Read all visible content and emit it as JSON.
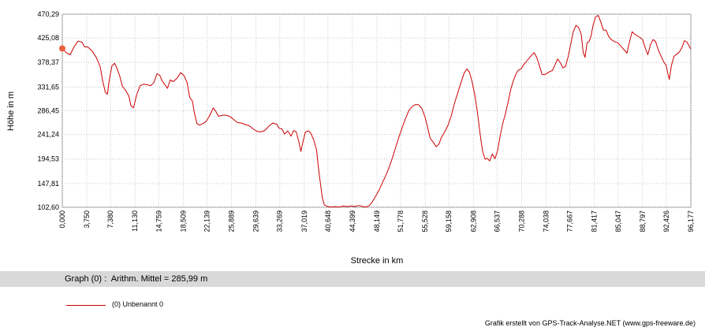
{
  "chart_data": {
    "type": "line",
    "xlabel": "Strecke  in  km",
    "ylabel": "Höhe  in  m",
    "ylim": [
      102.6,
      470.29
    ],
    "xlim": [
      0.0,
      96.177
    ],
    "grid": true,
    "y_ticks": [
      "470,29",
      "425,08",
      "378,37",
      "331,65",
      "286,45",
      "241,24",
      "194,53",
      "147,81",
      "102,60"
    ],
    "y_tick_values": [
      470.29,
      425.08,
      378.37,
      331.65,
      286.45,
      241.24,
      194.53,
      147.81,
      102.6
    ],
    "x_ticks": [
      "0,000",
      "3,750",
      "7,380",
      "11,130",
      "14,759",
      "18,509",
      "22,139",
      "25,889",
      "29,639",
      "33,269",
      "37,019",
      "40,648",
      "44,399",
      "48,149",
      "51,778",
      "55,528",
      "59,158",
      "62,908",
      "66,537",
      "70,288",
      "74,038",
      "77,667",
      "81,417",
      "85,047",
      "88,797",
      "92,426",
      "96,177"
    ],
    "x_tick_values": [
      0.0,
      3.75,
      7.38,
      11.13,
      14.759,
      18.509,
      22.139,
      25.889,
      29.639,
      33.269,
      37.019,
      40.648,
      44.399,
      48.149,
      51.778,
      55.528,
      59.158,
      62.908,
      66.537,
      70.288,
      74.038,
      77.667,
      81.417,
      85.047,
      88.797,
      92.426,
      96.177
    ],
    "series": [
      {
        "name": "(0) Unbenannt 0",
        "color": "#cc0000",
        "points": [
          [
            0.0,
            405
          ],
          [
            0.6,
            397
          ],
          [
            1.2,
            393
          ],
          [
            1.8,
            408
          ],
          [
            2.4,
            419
          ],
          [
            3.0,
            417
          ],
          [
            3.4,
            408
          ],
          [
            3.9,
            408
          ],
          [
            4.5,
            401
          ],
          [
            5.2,
            388
          ],
          [
            5.8,
            370
          ],
          [
            6.2,
            342
          ],
          [
            6.6,
            321
          ],
          [
            6.9,
            318
          ],
          [
            7.2,
            346
          ],
          [
            7.6,
            372
          ],
          [
            8.0,
            377
          ],
          [
            8.4,
            366
          ],
          [
            8.8,
            352
          ],
          [
            9.2,
            333
          ],
          [
            9.7,
            325
          ],
          [
            10.2,
            314
          ],
          [
            10.5,
            296
          ],
          [
            10.9,
            292
          ],
          [
            11.4,
            318
          ],
          [
            11.9,
            334
          ],
          [
            12.4,
            337
          ],
          [
            13.0,
            336
          ],
          [
            13.5,
            334
          ],
          [
            14.0,
            340
          ],
          [
            14.5,
            357
          ],
          [
            14.9,
            354
          ],
          [
            15.3,
            343
          ],
          [
            15.7,
            336
          ],
          [
            16.1,
            329
          ],
          [
            16.5,
            345
          ],
          [
            17.0,
            342
          ],
          [
            17.6,
            349
          ],
          [
            18.1,
            359
          ],
          [
            18.6,
            354
          ],
          [
            19.1,
            340
          ],
          [
            19.5,
            312
          ],
          [
            19.9,
            305
          ],
          [
            20.2,
            283
          ],
          [
            20.6,
            262
          ],
          [
            21.0,
            259
          ],
          [
            21.5,
            262
          ],
          [
            22.0,
            266
          ],
          [
            22.5,
            276
          ],
          [
            23.1,
            292
          ],
          [
            23.5,
            285
          ],
          [
            23.9,
            276
          ],
          [
            24.5,
            278
          ],
          [
            25.0,
            278
          ],
          [
            25.6,
            276
          ],
          [
            26.2,
            270
          ],
          [
            26.8,
            264
          ],
          [
            27.4,
            263
          ],
          [
            28.0,
            260
          ],
          [
            28.6,
            258
          ],
          [
            29.2,
            252
          ],
          [
            29.8,
            247
          ],
          [
            30.4,
            246
          ],
          [
            31.0,
            249
          ],
          [
            31.6,
            257
          ],
          [
            32.2,
            263
          ],
          [
            32.8,
            261
          ],
          [
            33.2,
            253
          ],
          [
            33.6,
            252
          ],
          [
            34.0,
            242
          ],
          [
            34.5,
            248
          ],
          [
            35.0,
            238
          ],
          [
            35.4,
            249
          ],
          [
            35.8,
            246
          ],
          [
            36.2,
            227
          ],
          [
            36.5,
            209
          ],
          [
            36.8,
            226
          ],
          [
            37.2,
            246
          ],
          [
            37.7,
            248
          ],
          [
            38.1,
            242
          ],
          [
            38.5,
            230
          ],
          [
            38.9,
            212
          ],
          [
            39.2,
            178
          ],
          [
            39.5,
            148
          ],
          [
            39.8,
            120
          ],
          [
            40.1,
            107
          ],
          [
            40.6,
            104
          ],
          [
            41.2,
            103
          ],
          [
            41.8,
            104
          ],
          [
            42.4,
            103
          ],
          [
            43.0,
            105
          ],
          [
            43.6,
            104
          ],
          [
            44.2,
            105
          ],
          [
            44.8,
            104
          ],
          [
            45.4,
            106
          ],
          [
            46.0,
            104
          ],
          [
            46.5,
            103
          ],
          [
            47.0,
            106
          ],
          [
            47.5,
            114
          ],
          [
            48.0,
            125
          ],
          [
            48.5,
            136
          ],
          [
            49.0,
            150
          ],
          [
            49.5,
            163
          ],
          [
            50.0,
            178
          ],
          [
            50.5,
            196
          ],
          [
            51.0,
            216
          ],
          [
            51.5,
            236
          ],
          [
            52.0,
            254
          ],
          [
            52.5,
            271
          ],
          [
            53.0,
            286
          ],
          [
            53.5,
            294
          ],
          [
            54.0,
            298
          ],
          [
            54.5,
            298
          ],
          [
            55.0,
            291
          ],
          [
            55.5,
            275
          ],
          [
            55.9,
            255
          ],
          [
            56.3,
            234
          ],
          [
            56.8,
            226
          ],
          [
            57.2,
            218
          ],
          [
            57.6,
            222
          ],
          [
            58.0,
            235
          ],
          [
            58.5,
            246
          ],
          [
            59.0,
            258
          ],
          [
            59.5,
            276
          ],
          [
            60.0,
            300
          ],
          [
            60.5,
            320
          ],
          [
            61.0,
            340
          ],
          [
            61.5,
            358
          ],
          [
            61.9,
            366
          ],
          [
            62.3,
            360
          ],
          [
            62.7,
            342
          ],
          [
            63.1,
            318
          ],
          [
            63.5,
            286
          ],
          [
            63.9,
            246
          ],
          [
            64.3,
            210
          ],
          [
            64.7,
            194
          ],
          [
            65.0,
            196
          ],
          [
            65.4,
            191
          ],
          [
            65.8,
            204
          ],
          [
            66.2,
            195
          ],
          [
            66.6,
            210
          ],
          [
            67.0,
            238
          ],
          [
            67.4,
            262
          ],
          [
            67.8,
            280
          ],
          [
            68.2,
            302
          ],
          [
            68.6,
            326
          ],
          [
            69.0,
            343
          ],
          [
            69.4,
            356
          ],
          [
            69.8,
            364
          ],
          [
            70.2,
            366
          ],
          [
            70.6,
            374
          ],
          [
            71.0,
            380
          ],
          [
            71.4,
            386
          ],
          [
            71.8,
            392
          ],
          [
            72.2,
            397
          ],
          [
            72.6,
            388
          ],
          [
            73.0,
            373
          ],
          [
            73.4,
            356
          ],
          [
            73.8,
            355
          ],
          [
            74.2,
            358
          ],
          [
            74.6,
            361
          ],
          [
            75.0,
            363
          ],
          [
            75.4,
            374
          ],
          [
            75.8,
            385
          ],
          [
            76.2,
            378
          ],
          [
            76.6,
            368
          ],
          [
            77.0,
            371
          ],
          [
            77.4,
            389
          ],
          [
            77.8,
            413
          ],
          [
            78.2,
            437
          ],
          [
            78.6,
            449
          ],
          [
            79.0,
            445
          ],
          [
            79.4,
            432
          ],
          [
            79.7,
            398
          ],
          [
            80.0,
            388
          ],
          [
            80.3,
            416
          ],
          [
            80.6,
            418
          ],
          [
            80.9,
            428
          ],
          [
            81.2,
            448
          ],
          [
            81.6,
            465
          ],
          [
            82.0,
            468
          ],
          [
            82.4,
            456
          ],
          [
            82.8,
            440
          ],
          [
            83.2,
            440
          ],
          [
            83.6,
            428
          ],
          [
            84.0,
            422
          ],
          [
            84.5,
            418
          ],
          [
            85.0,
            416
          ],
          [
            85.5,
            409
          ],
          [
            86.0,
            402
          ],
          [
            86.4,
            396
          ],
          [
            86.8,
            418
          ],
          [
            87.2,
            437
          ],
          [
            87.6,
            432
          ],
          [
            88.0,
            429
          ],
          [
            88.4,
            426
          ],
          [
            88.8,
            422
          ],
          [
            89.2,
            406
          ],
          [
            89.6,
            393
          ],
          [
            90.0,
            412
          ],
          [
            90.4,
            422
          ],
          [
            90.8,
            418
          ],
          [
            91.2,
            402
          ],
          [
            91.6,
            391
          ],
          [
            92.0,
            380
          ],
          [
            92.4,
            373
          ],
          [
            92.7,
            355
          ],
          [
            92.9,
            346
          ],
          [
            93.2,
            372
          ],
          [
            93.6,
            390
          ],
          [
            94.0,
            394
          ],
          [
            94.4,
            398
          ],
          [
            94.8,
            406
          ],
          [
            95.2,
            420
          ],
          [
            95.6,
            417
          ],
          [
            96.177,
            404
          ]
        ]
      }
    ]
  },
  "info_bar": {
    "text": "Graph (0) :  Arithm. Mittel = 285,99 m"
  },
  "legend": {
    "label": "(0) Unbenannt 0"
  },
  "footer": {
    "credit": "Grafik erstellt von GPS-Track-Analyse.NET (www.gps-freeware.de)"
  }
}
